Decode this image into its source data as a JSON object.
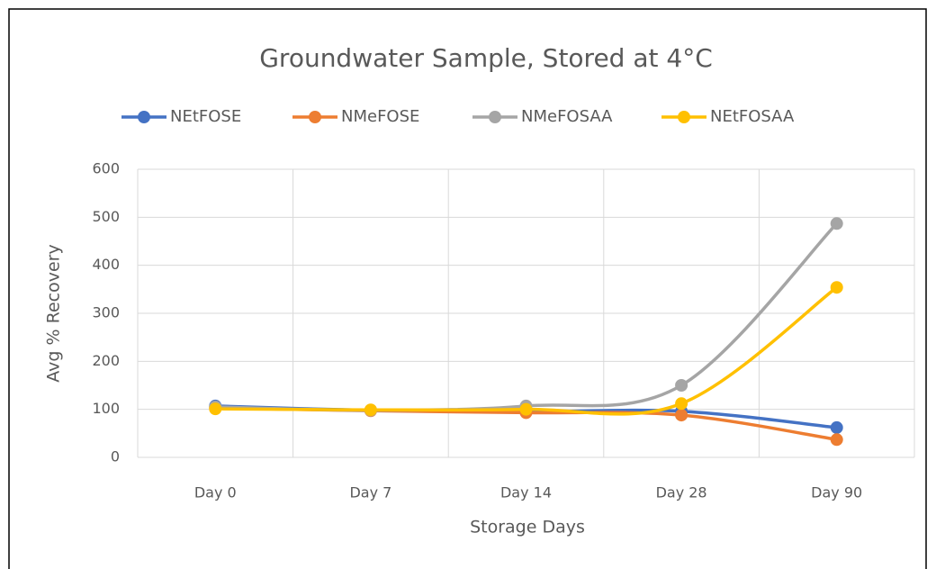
{
  "chart_data": {
    "type": "line",
    "title": "Groundwater Sample, Stored at 4°C",
    "x_label": "Storage Days",
    "y_label": "Avg % Recovery",
    "categories": [
      "Day 0",
      "Day 7",
      "Day 14",
      "Day 28",
      "Day 90"
    ],
    "series": [
      {
        "name": "NEtFOSE",
        "color": "#4472c4",
        "values": [
          107,
          98,
          95,
          96,
          62
        ]
      },
      {
        "name": "NMeFOSE",
        "color": "#ed7d31",
        "values": [
          103,
          97,
          93,
          88,
          37
        ]
      },
      {
        "name": "NMeFOSAA",
        "color": "#a5a5a5",
        "values": [
          105,
          98,
          107,
          150,
          487
        ]
      },
      {
        "name": "NEtFOSAA",
        "color": "#ffc000",
        "values": [
          101,
          99,
          100,
          112,
          354
        ]
      }
    ],
    "ylim": [
      0,
      600
    ],
    "yticks": [
      0,
      100,
      200,
      300,
      400,
      500,
      600
    ],
    "grid": true,
    "smooth": true,
    "legend": "top"
  }
}
